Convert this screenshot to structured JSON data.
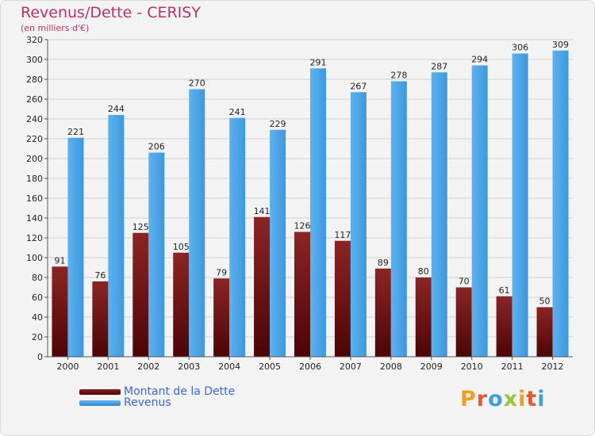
{
  "title": "Revenus/Dette - CERISY",
  "subtitle": "(en milliers d'€)",
  "logo": "Proxiti",
  "colors": {
    "dette": "#7a1a1a",
    "revenus": "#4aa3e6",
    "title": "#b8336a",
    "legend_text": "#3a68d8"
  },
  "chart_data": {
    "type": "bar",
    "categories": [
      "2000",
      "2001",
      "2002",
      "2003",
      "2004",
      "2005",
      "2006",
      "2007",
      "2008",
      "2009",
      "2010",
      "2011",
      "2012"
    ],
    "series": [
      {
        "name": "Montant de la Dette",
        "values": [
          91,
          76,
          125,
          105,
          79,
          141,
          126,
          117,
          89,
          80,
          70,
          61,
          50
        ]
      },
      {
        "name": "Revenus",
        "values": [
          221,
          244,
          206,
          270,
          241,
          229,
          291,
          267,
          278,
          287,
          294,
          306,
          309
        ]
      }
    ],
    "yticks": [
      0,
      20,
      40,
      60,
      80,
      100,
      120,
      140,
      160,
      180,
      200,
      220,
      240,
      260,
      280,
      300,
      320
    ],
    "ylim": [
      0,
      320
    ],
    "title": "Revenus/Dette - CERISY",
    "ylabel": "(en milliers d'€)",
    "xlabel": "",
    "grid": true,
    "legend": "bottom-left"
  }
}
